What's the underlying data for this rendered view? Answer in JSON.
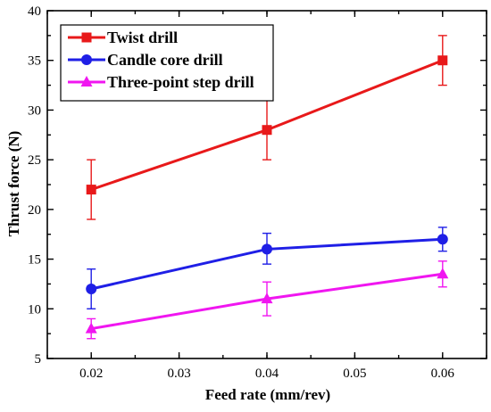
{
  "chart_data": {
    "type": "line",
    "title": "",
    "xlabel": "Feed rate (mm/rev)",
    "ylabel": "Thrust force (N)",
    "xlim": [
      0.015,
      0.065
    ],
    "ylim": [
      5,
      40
    ],
    "xticks": [
      0.02,
      0.03,
      0.04,
      0.05,
      0.06
    ],
    "xtick_labels": [
      "0.02",
      "0.03",
      "0.04",
      "0.05",
      "0.06"
    ],
    "yticks": [
      5,
      10,
      15,
      20,
      25,
      30,
      35,
      40
    ],
    "ytick_labels": [
      "5",
      "10",
      "15",
      "20",
      "25",
      "30",
      "35",
      "40"
    ],
    "x": [
      0.02,
      0.04,
      0.06
    ],
    "legend_position": "top-left",
    "grid": false,
    "series": [
      {
        "name": "Twist drill",
        "color": "#e8191a",
        "marker": "square",
        "values": [
          22,
          28,
          35
        ],
        "err_low": [
          19,
          25,
          32.5
        ],
        "err_high": [
          25,
          31,
          37.5
        ]
      },
      {
        "name": "Candle core drill",
        "color": "#1f1fe6",
        "marker": "circle",
        "values": [
          12,
          16,
          17
        ],
        "err_low": [
          10,
          14.5,
          15.8
        ],
        "err_high": [
          14,
          17.6,
          18.2
        ]
      },
      {
        "name": "Three-point step drill",
        "color": "#f016f0",
        "marker": "triangle",
        "values": [
          8,
          11,
          13.5
        ],
        "err_low": [
          7,
          9.3,
          12.2
        ],
        "err_high": [
          9,
          12.7,
          14.8
        ]
      }
    ]
  }
}
